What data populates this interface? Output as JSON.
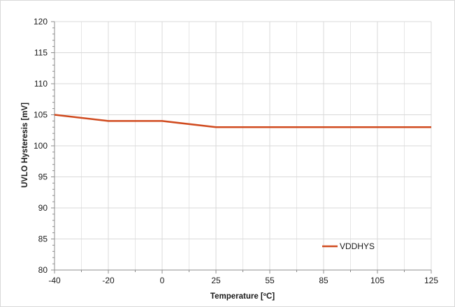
{
  "chart_data": {
    "type": "line",
    "title": "",
    "xlabel": "Temperature [ºC]",
    "ylabel": "UVLO Hysteresis [mV]",
    "categories": [
      "-40",
      "-20",
      "0",
      "25",
      "55",
      "85",
      "105",
      "125"
    ],
    "ylim": [
      80,
      120
    ],
    "yticks": [
      80,
      85,
      90,
      95,
      100,
      105,
      110,
      115,
      120
    ],
    "grid": true,
    "legend_position": "bottom-right",
    "series": [
      {
        "name": "VDDHYS",
        "color": "#d04a1e",
        "values": [
          105,
          104,
          104,
          103,
          103,
          103,
          103,
          103
        ]
      }
    ]
  }
}
